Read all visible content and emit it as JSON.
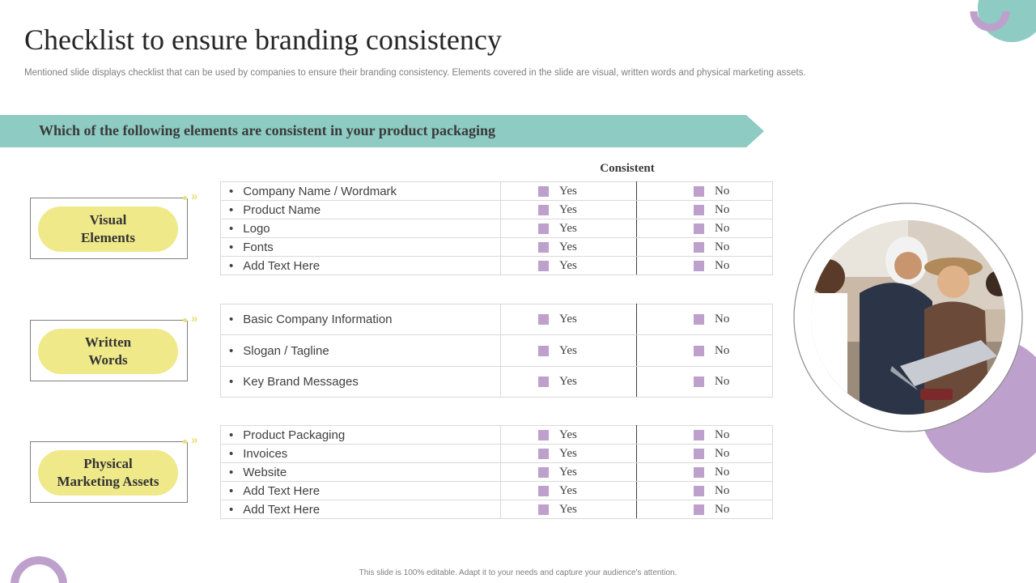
{
  "title": "Checklist to ensure branding consistency",
  "subtitle": "Mentioned slide displays checklist that can be used by companies to ensure their branding consistency. Elements covered in the slide are visual, written words and physical marketing assets.",
  "banner": "Which of the following elements are consistent in your product packaging",
  "consistent_header": "Consistent",
  "yes_label": "Yes",
  "no_label": "No",
  "sections": [
    {
      "category": [
        "Visual",
        "Elements"
      ],
      "items": [
        "Company Name / Wordmark",
        "Product Name",
        "Logo",
        "Fonts",
        "Add Text Here"
      ]
    },
    {
      "category": [
        "Written",
        "Words"
      ],
      "items": [
        "Basic Company Information",
        "Slogan / Tagline",
        "Key Brand Messages"
      ]
    },
    {
      "category": [
        "Physical",
        "Marketing Assets"
      ],
      "items": [
        "Product Packaging",
        "Invoices",
        "Website",
        "Add Text Here",
        "Add Text Here"
      ]
    }
  ],
  "footer": "This slide is 100% editable. Adapt it to your needs and capture your audience's attention.",
  "colors": {
    "accent_teal": "#8ecbc3",
    "accent_purple": "#bea0cc",
    "accent_yellow": "#efe98a"
  },
  "icons": {
    "bullet": "•",
    "chevrons": "»"
  }
}
